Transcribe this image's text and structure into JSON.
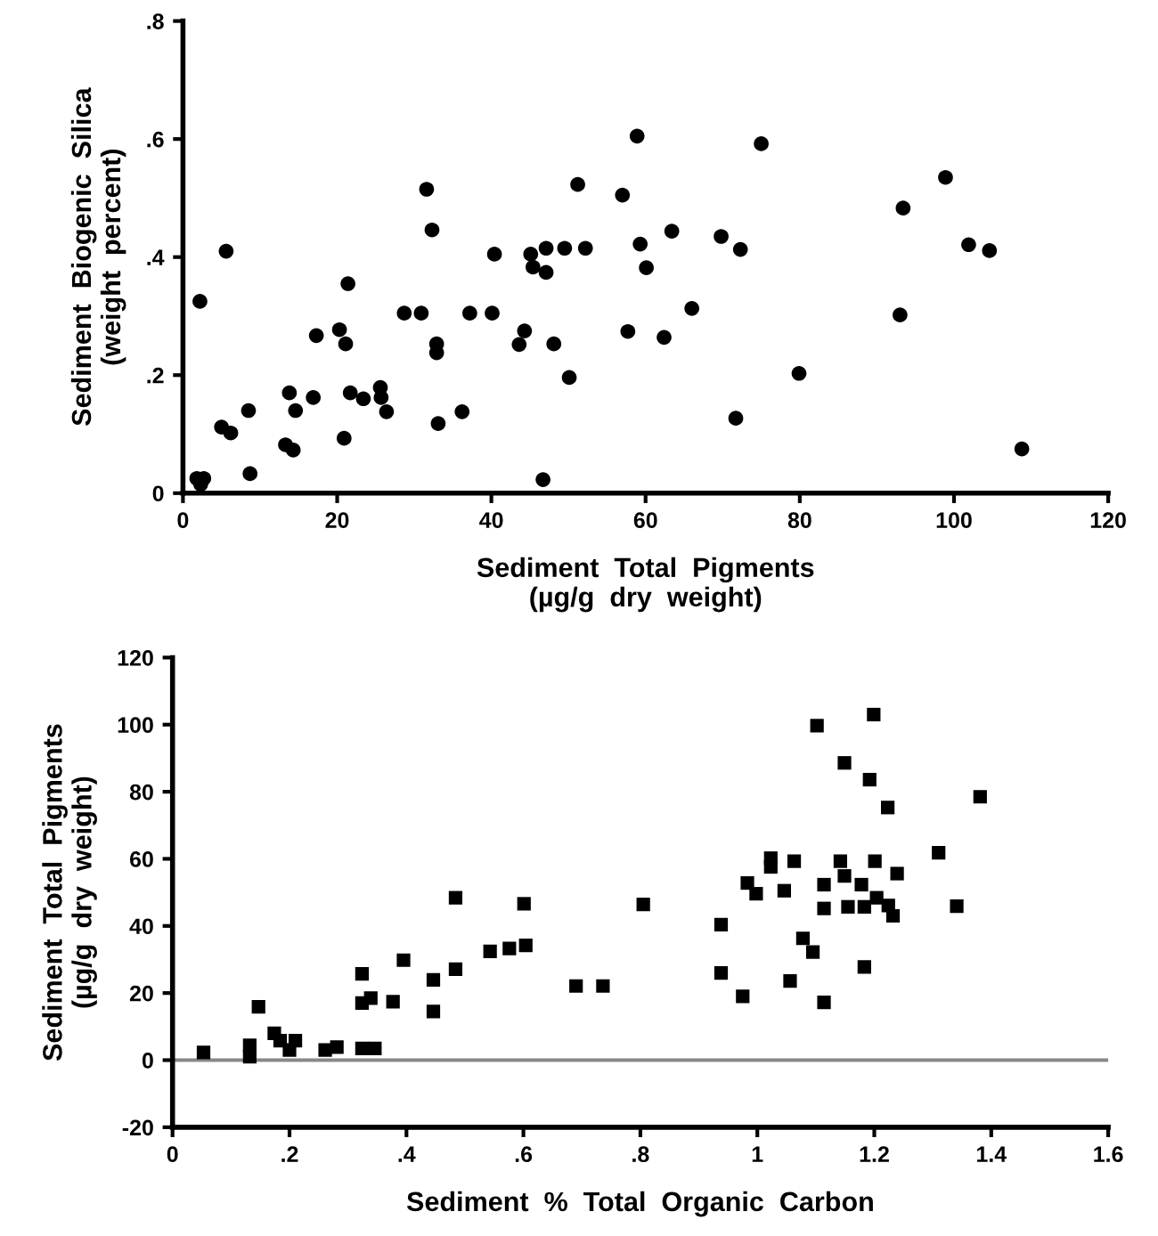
{
  "chart_data": [
    {
      "type": "scatter",
      "xlabel": "Sediment  Total  Pigments\n(µg/g  dry  weight)",
      "ylabel": "Sediment  Biogenic  Silica\n(weight  percent)",
      "marker": "circle",
      "grid": false,
      "xlim": [
        0,
        120
      ],
      "ylim": [
        0,
        0.8
      ],
      "xticks": [
        0,
        20,
        40,
        60,
        80,
        100,
        120
      ],
      "yticks": [
        0,
        {
          "value": 0.2,
          "label": ".2"
        },
        {
          "value": 0.4,
          "label": ".4"
        },
        {
          "value": 0.6,
          "label": ".6"
        },
        {
          "value": 0.8,
          "label": ".8"
        }
      ],
      "series": [
        {
          "color": "#000000",
          "x": [
            2.2,
            1.8,
            2.7,
            2.3,
            5.6,
            5.0,
            6.2,
            8.5,
            8.7,
            13.8,
            14.6,
            13.3,
            14.3,
            16.9,
            17.3,
            20.3,
            21.1,
            21.4,
            20.9,
            21.7,
            23.4,
            25.6,
            25.7,
            26.4,
            28.7,
            30.9,
            31.6,
            32.3,
            32.9,
            32.9,
            33.1,
            36.2,
            37.2,
            40.1,
            40.4,
            43.6,
            44.3,
            45.1,
            45.4,
            46.7,
            47.1,
            47.1,
            48.1,
            49.5,
            50.1,
            51.2,
            52.2,
            57.0,
            57.7,
            58.9,
            59.3,
            60.1,
            62.4,
            63.4,
            66.0,
            75.0,
            69.8,
            72.3,
            79.9,
            71.7,
            93.4,
            93.0,
            98.9,
            101.9,
            104.6,
            108.8
          ],
          "values": [
            0.325,
            0.025,
            0.025,
            0.015,
            0.41,
            0.112,
            0.102,
            0.14,
            0.033,
            0.17,
            0.14,
            0.082,
            0.073,
            0.162,
            0.267,
            0.277,
            0.253,
            0.355,
            0.093,
            0.17,
            0.16,
            0.179,
            0.162,
            0.138,
            0.305,
            0.305,
            0.515,
            0.446,
            0.253,
            0.238,
            0.118,
            0.138,
            0.305,
            0.305,
            0.405,
            0.252,
            0.275,
            0.405,
            0.383,
            0.023,
            0.415,
            0.374,
            0.253,
            0.415,
            0.196,
            0.523,
            0.415,
            0.505,
            0.274,
            0.605,
            0.422,
            0.382,
            0.264,
            0.444,
            0.313,
            0.592,
            0.435,
            0.413,
            0.203,
            0.127,
            0.483,
            0.302,
            0.535,
            0.421,
            0.411,
            0.075
          ]
        }
      ]
    },
    {
      "type": "scatter",
      "xlabel": "Sediment  %  Total  Organic  Carbon",
      "ylabel": "Sediment  Total  Pigments\n(µg/g  dry  weight)",
      "marker": "square",
      "grid": false,
      "xlim": [
        0,
        1.6
      ],
      "ylim": [
        -20,
        120
      ],
      "xticks": [
        0,
        {
          "value": 0.2,
          "label": ".2"
        },
        {
          "value": 0.4,
          "label": ".4"
        },
        {
          "value": 0.6,
          "label": ".6"
        },
        {
          "value": 0.8,
          "label": ".8"
        },
        1,
        1.2,
        1.4,
        1.6
      ],
      "yticks": [
        {
          "value": -20,
          "label": "-20"
        },
        0,
        20,
        40,
        60,
        80,
        100,
        120
      ],
      "ref_lines": [
        {
          "axis": "y",
          "value": 0,
          "color": "#888888"
        }
      ],
      "series": [
        {
          "color": "#000000",
          "x": [
            0.053,
            0.132,
            0.132,
            0.147,
            0.174,
            0.184,
            0.21,
            0.2,
            0.261,
            0.281,
            0.324,
            0.324,
            0.339,
            0.324,
            0.346,
            0.377,
            0.395,
            0.446,
            0.446,
            0.484,
            0.484,
            0.543,
            0.576,
            0.604,
            0.601,
            0.69,
            0.736,
            0.805,
            0.938,
            0.938,
            0.975,
            1.023,
            1.023,
            1.063,
            0.983,
            0.998,
            1.046,
            1.056,
            1.078,
            1.095,
            1.102,
            1.114,
            1.114,
            1.114,
            1.142,
            1.149,
            1.149,
            1.155,
            1.178,
            1.183,
            1.183,
            1.192,
            1.199,
            1.201,
            1.204,
            1.224,
            1.223,
            1.232,
            1.239,
            1.31,
            1.341,
            1.381
          ],
          "values": [
            2.3,
            4.4,
            1,
            15.9,
            8.0,
            5.8,
            5.8,
            3,
            3.0,
            3.9,
            25.7,
            17,
            18.5,
            3.5,
            3.5,
            17.4,
            29.8,
            23.9,
            14.5,
            48.4,
            27.1,
            32.4,
            33.3,
            34.2,
            46.6,
            22.1,
            22.1,
            46.4,
            40.4,
            26.0,
            19.0,
            60.2,
            57.6,
            59.3,
            52.8,
            49.6,
            50.5,
            23.6,
            36.3,
            32.2,
            99.7,
            52.3,
            45.2,
            17.2,
            59.3,
            88.6,
            54.9,
            45.7,
            52.3,
            45.7,
            27.8,
            83.6,
            103.0,
            59.3,
            48.4,
            46.1,
            75.3,
            43.0,
            55.6,
            61.8,
            45.9,
            78.5
          ]
        }
      ]
    }
  ]
}
